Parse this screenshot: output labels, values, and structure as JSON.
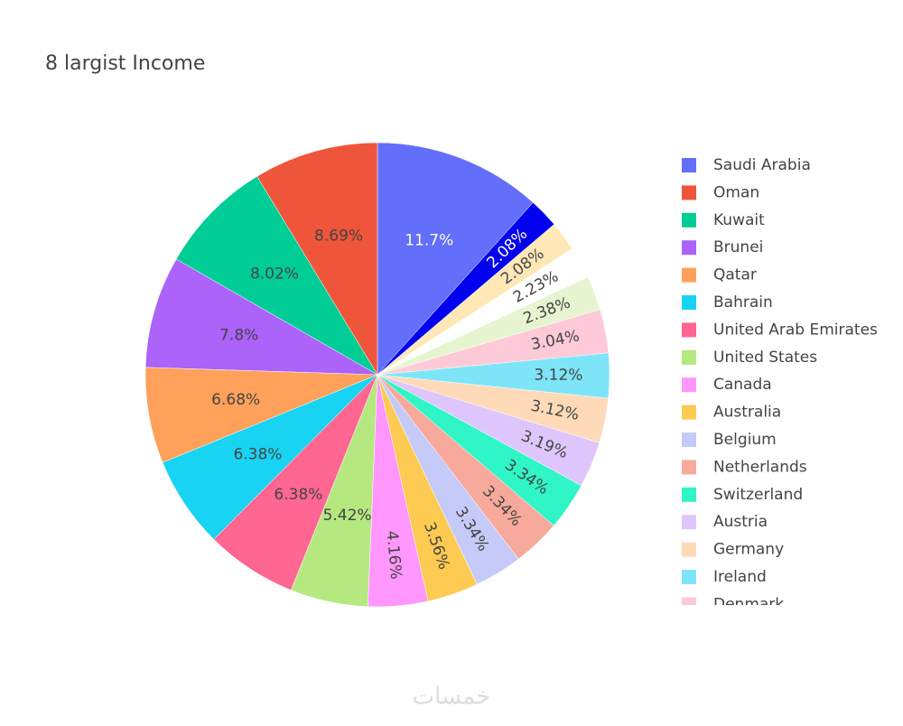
{
  "chart_data": {
    "type": "pie",
    "title": "8 largist Income",
    "categories": [
      "Saudi Arabia",
      "Oman",
      "Kuwait",
      "Brunei",
      "Qatar",
      "Bahrain",
      "United Arab Emirates",
      "United States",
      "Canada",
      "Australia",
      "Belgium",
      "Netherlands",
      "Switzerland",
      "Austria",
      "Germany",
      "Ireland",
      "Denmark",
      null,
      null,
      null,
      null
    ],
    "values": [
      11.7,
      8.69,
      8.02,
      7.8,
      6.68,
      6.38,
      6.38,
      5.42,
      4.16,
      3.56,
      3.34,
      3.34,
      3.34,
      3.19,
      3.12,
      3.12,
      3.04,
      2.38,
      2.23,
      2.08,
      2.08
    ],
    "value_labels": [
      "11.7%",
      "8.69%",
      "8.02%",
      "7.8%",
      "6.68%",
      "6.38%",
      "6.38%",
      "5.42%",
      "4.16%",
      "3.56%",
      "3.34%",
      "3.34%",
      "3.34%",
      "3.19%",
      "3.12%",
      "3.12%",
      "3.04%",
      "2.38%",
      "2.23%",
      "2.08%",
      "2.08%"
    ],
    "colors": [
      "#636efa",
      "#ef553b",
      "#00cc96",
      "#ab63fa",
      "#ffa15a",
      "#19d3f3",
      "#ff6692",
      "#b6e880",
      "#ff97ff",
      "#fecb52",
      "#c6caf8",
      "#f7a99b",
      "#30f5c6",
      "#dec6fc",
      "#ffdab8",
      "#7ee5f8",
      "#ffcad8",
      "#e6f5d0",
      "#ffffff",
      "#ffe8b6",
      "#0000ee"
    ],
    "watermark": "خمسات"
  }
}
